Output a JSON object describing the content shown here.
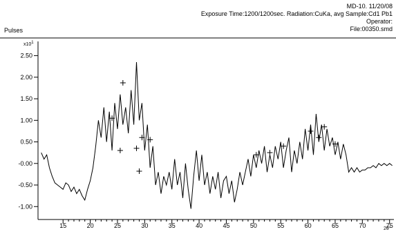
{
  "header": {
    "line1": "MD-10.  11/20/08",
    "line2": "Exposure Time:1200/1200sec.  Radiation:CuKa, avg   Sample:Cd1 Pb1",
    "line3": "Operator:",
    "line4": "File:00350.smd"
  },
  "chart_data": {
    "type": "line",
    "ylabel": "Pulses",
    "yscale_label": "x10",
    "yscale_exp": "1",
    "xlabel": "2θ°",
    "x": [
      11,
      11.5,
      12,
      12.5,
      13,
      13.5,
      14,
      14.5,
      15,
      15.5,
      16,
      16.5,
      17,
      17.5,
      18,
      18.5,
      19,
      19.5,
      20,
      20.5,
      21,
      21.5,
      22,
      22.5,
      23,
      23.5,
      24,
      24.5,
      25,
      25.5,
      26,
      26.5,
      27,
      27.5,
      28,
      28.5,
      29,
      29.5,
      30,
      30.5,
      31,
      31.5,
      32,
      32.5,
      33,
      33.5,
      34,
      34.5,
      35,
      35.5,
      36,
      36.5,
      37,
      37.5,
      38,
      38.5,
      39,
      39.5,
      40,
      40.5,
      41,
      41.5,
      42,
      42.5,
      43,
      43.5,
      44,
      44.5,
      45,
      45.5,
      46,
      46.5,
      47,
      47.5,
      48,
      48.5,
      49,
      49.5,
      50,
      50.5,
      51,
      51.5,
      52,
      52.5,
      53,
      53.5,
      54,
      54.5,
      55,
      55.5,
      56,
      56.5,
      57,
      57.5,
      58,
      58.5,
      59,
      59.5,
      60,
      60.5,
      61,
      61.5,
      62,
      62.5,
      63,
      63.5,
      64,
      64.5,
      65,
      65.5,
      66,
      66.5,
      67,
      67.5,
      68,
      68.5,
      69,
      69.5,
      70,
      70.5,
      71,
      71.5,
      72,
      72.5,
      73,
      73.5,
      74,
      74.5,
      75,
      75.5
    ],
    "series": [
      {
        "color": "#000000",
        "values": [
          0.25,
          0.1,
          0.2,
          -0.1,
          -0.3,
          -0.45,
          -0.5,
          -0.55,
          -0.6,
          -0.45,
          -0.5,
          -0.65,
          -0.55,
          -0.7,
          -0.6,
          -0.75,
          -0.85,
          -0.6,
          -0.4,
          -0.1,
          0.4,
          1.0,
          0.6,
          1.3,
          0.5,
          1.2,
          0.3,
          1.4,
          0.8,
          1.6,
          0.9,
          1.3,
          0.7,
          1.7,
          0.9,
          2.35,
          1.0,
          1.4,
          0.3,
          0.9,
          -0.1,
          0.4,
          -0.5,
          -0.2,
          -0.7,
          -0.3,
          -0.5,
          -0.2,
          -0.6,
          0.1,
          -0.5,
          -0.2,
          -0.8,
          0.0,
          -0.6,
          -1.05,
          -0.3,
          0.3,
          -0.4,
          0.2,
          -0.5,
          -0.2,
          -0.7,
          -0.3,
          -0.6,
          -0.2,
          -0.8,
          -0.4,
          -0.3,
          -0.7,
          -0.4,
          -0.9,
          -0.6,
          -0.2,
          -0.5,
          -0.2,
          0.1,
          -0.3,
          0.2,
          -0.1,
          0.3,
          0.0,
          0.4,
          -0.2,
          0.2,
          -0.1,
          0.4,
          0.1,
          0.5,
          -0.1,
          0.3,
          0.6,
          -0.2,
          0.3,
          0.0,
          0.5,
          0.1,
          0.8,
          0.3,
          0.9,
          0.2,
          1.15,
          0.5,
          0.9,
          0.3,
          0.8,
          0.4,
          0.6,
          0.2,
          0.5,
          0.1,
          0.45,
          0.2,
          -0.2,
          -0.1,
          -0.2,
          -0.1,
          -0.2,
          -0.15,
          -0.15,
          -0.1,
          -0.1,
          -0.05,
          -0.1,
          0.0,
          -0.05,
          0.0,
          -0.05,
          0.0,
          -0.05
        ]
      }
    ],
    "markers": {
      "x": [
        24,
        25.5,
        26,
        28.5,
        29,
        29.5,
        31,
        50.5,
        53,
        55.5,
        60.5,
        62,
        63,
        65
      ],
      "y": [
        1.05,
        0.3,
        1.87,
        0.35,
        -0.18,
        0.6,
        0.55,
        0.2,
        0.25,
        0.4,
        0.75,
        0.6,
        0.85,
        0.45
      ]
    },
    "xlim": [
      10.4,
      75.8
    ],
    "ylim": [
      -1.3,
      2.75
    ],
    "xticks": [
      15,
      20,
      25,
      30,
      35,
      40,
      45,
      50,
      55,
      60,
      65,
      70,
      75
    ],
    "yticks": [
      {
        "value": 2.5,
        "label": "2.50"
      },
      {
        "value": 2.0,
        "label": "2.00"
      },
      {
        "value": 1.5,
        "label": "1.50"
      },
      {
        "value": 1.0,
        "label": "1.00"
      },
      {
        "value": 0.5,
        "label": "0.50"
      },
      {
        "value": 0,
        "label": "-0.00"
      },
      {
        "value": -0.5,
        "label": "-0.50"
      },
      {
        "value": -1.0,
        "label": "-1.00"
      }
    ]
  }
}
